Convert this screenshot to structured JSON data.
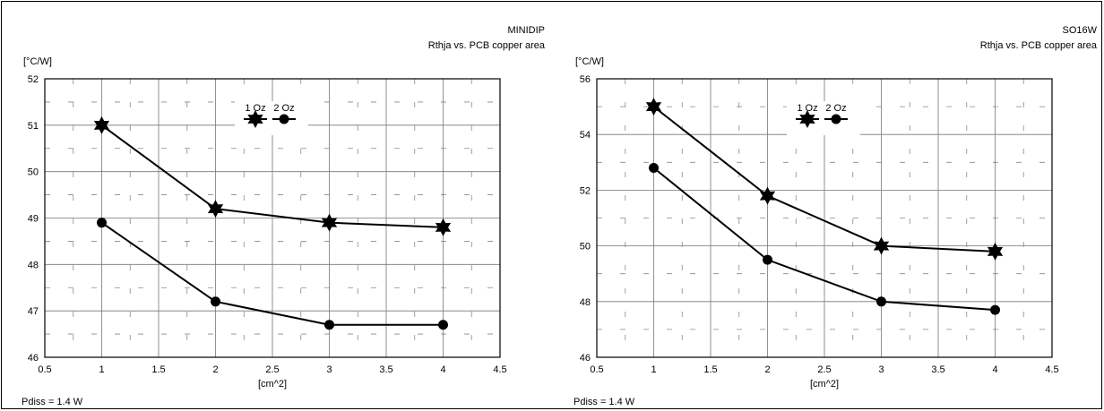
{
  "chart_data": [
    {
      "type": "line",
      "title": "MINIDIP",
      "subtitle": "Rthja vs. PCB copper area",
      "ylabel": "[°C/W]",
      "xlabel": "[cm^2]",
      "note": "Pdiss = 1.4 W",
      "xlim": [
        0.5,
        4.5
      ],
      "ylim": [
        46,
        52
      ],
      "xticks": [
        0.5,
        1,
        1.5,
        2,
        2.5,
        3,
        3.5,
        4,
        4.5
      ],
      "yticks": [
        46,
        47,
        48,
        49,
        50,
        51,
        52
      ],
      "grid": true,
      "legend_position": "top-center",
      "series": [
        {
          "name": "1 Oz",
          "marker": "star",
          "x": [
            1,
            2,
            3,
            4
          ],
          "y": [
            51.0,
            49.2,
            48.9,
            48.8
          ]
        },
        {
          "name": "2 Oz",
          "marker": "circle",
          "x": [
            1,
            2,
            3,
            4
          ],
          "y": [
            48.9,
            47.2,
            46.7,
            46.7
          ]
        }
      ]
    },
    {
      "type": "line",
      "title": "SO16W",
      "subtitle": "Rthja vs. PCB copper area",
      "ylabel": "[°C/W]",
      "xlabel": "[cm^2]",
      "note": "Pdiss = 1.4 W",
      "xlim": [
        0.5,
        4.5
      ],
      "ylim": [
        46,
        56
      ],
      "xticks": [
        0.5,
        1,
        1.5,
        2,
        2.5,
        3,
        3.5,
        4,
        4.5
      ],
      "yticks": [
        46,
        48,
        50,
        52,
        54,
        56
      ],
      "grid": true,
      "legend_position": "top-center",
      "series": [
        {
          "name": "1 Oz",
          "marker": "star",
          "x": [
            1,
            2,
            3,
            4
          ],
          "y": [
            55.0,
            51.8,
            50.0,
            49.8
          ]
        },
        {
          "name": "2 Oz",
          "marker": "circle",
          "x": [
            1,
            2,
            3,
            4
          ],
          "y": [
            52.8,
            49.5,
            48.0,
            47.7
          ]
        }
      ]
    }
  ]
}
